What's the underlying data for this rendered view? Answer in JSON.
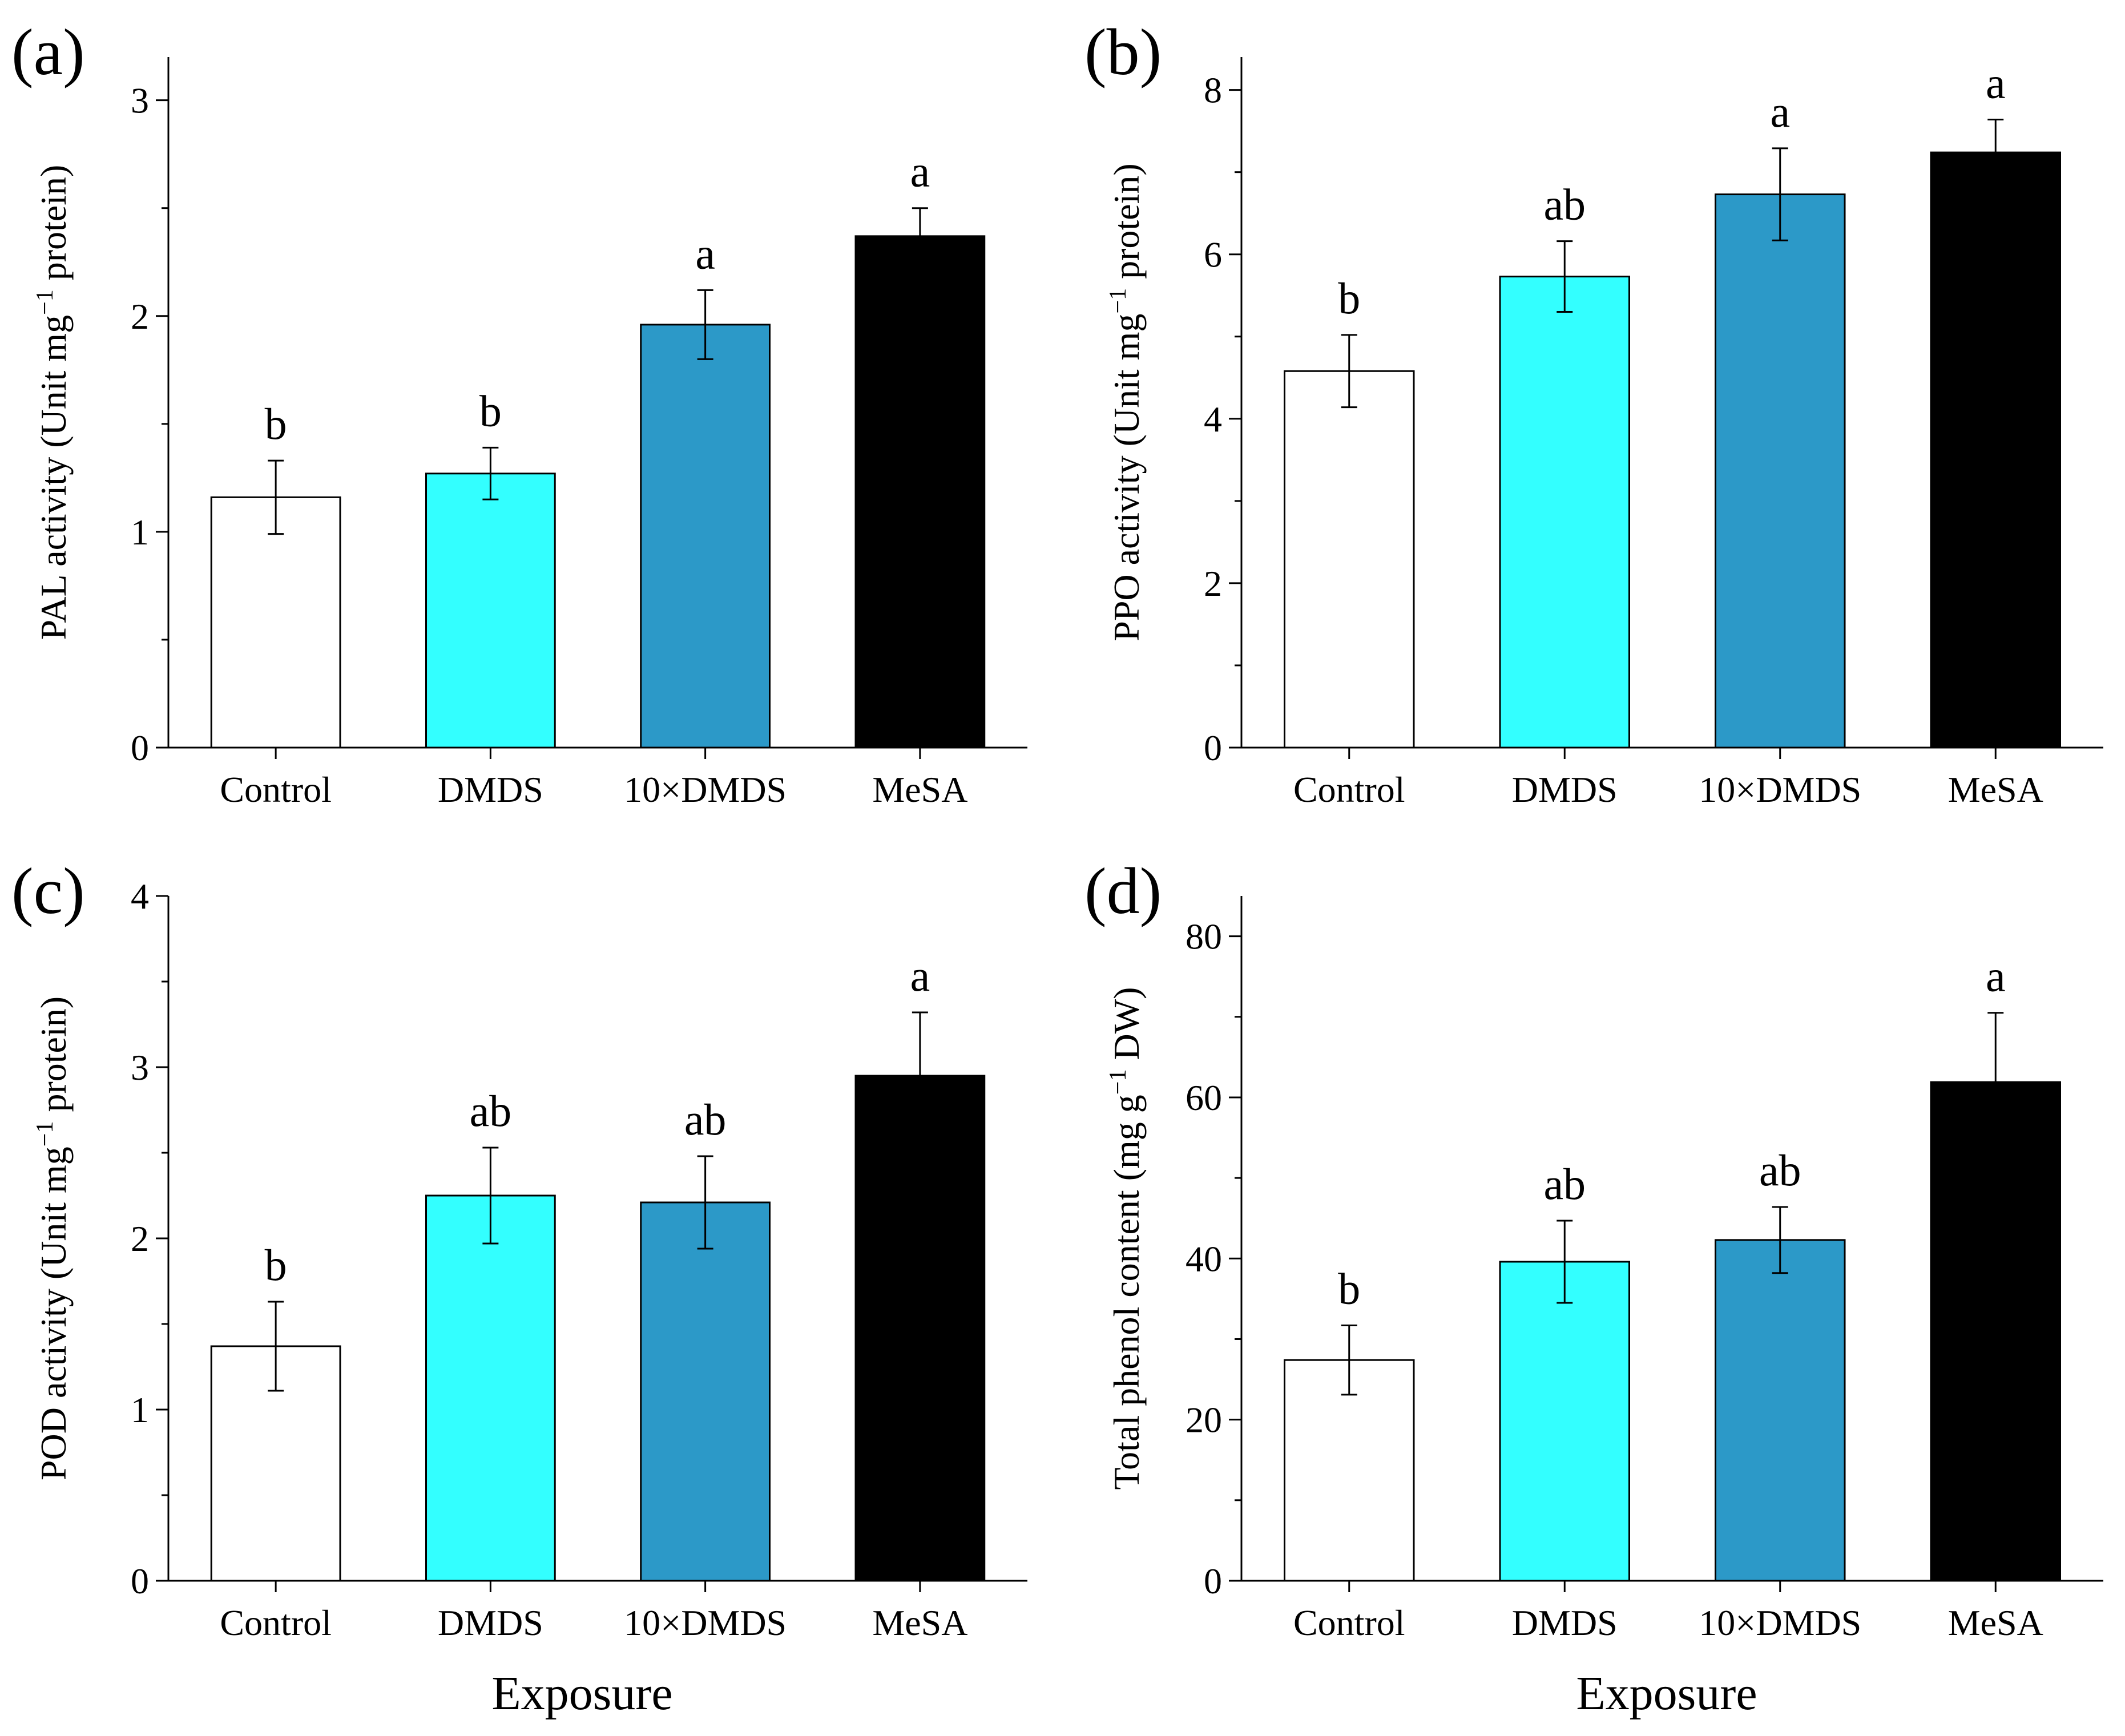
{
  "figure": {
    "x_title": "Exposure"
  },
  "chart_data": [
    {
      "type": "bar",
      "panel": "(a)",
      "categories": [
        "Control",
        "DMDS",
        "10×DMDS",
        "MeSA"
      ],
      "values": [
        1.16,
        1.27,
        1.96,
        2.37
      ],
      "errors": [
        0.17,
        0.12,
        0.16,
        0.13
      ],
      "significance": [
        "b",
        "b",
        "a",
        "a"
      ],
      "colors": [
        "#ffffff",
        "#33ffff",
        "#2c99c8",
        "#000000"
      ],
      "ylabel": "PAL activity (Unit mg",
      "ylabel_sup": "−1",
      "ylabel_tail": " protein)",
      "ylim": [
        0,
        3.2
      ],
      "yticks": [
        0,
        1,
        2,
        3
      ],
      "yticklabels": [
        "0",
        "1",
        "2",
        "3"
      ],
      "xlabel": ""
    },
    {
      "type": "bar",
      "panel": "(b)",
      "categories": [
        "Control",
        "DMDS",
        "10×DMDS",
        "MeSA"
      ],
      "values": [
        4.58,
        5.73,
        6.73,
        7.24
      ],
      "errors": [
        0.44,
        0.43,
        0.56,
        0.4
      ],
      "significance": [
        "b",
        "ab",
        "a",
        "a"
      ],
      "colors": [
        "#ffffff",
        "#33ffff",
        "#2c99c8",
        "#000000"
      ],
      "ylabel": "PPO activity (Unit mg",
      "ylabel_sup": "−1",
      "ylabel_tail": " protein)",
      "ylim": [
        0,
        8.4
      ],
      "yticks": [
        0,
        2,
        4,
        6,
        8
      ],
      "yticklabels": [
        "0",
        "2",
        "4",
        "6",
        "8"
      ],
      "xlabel": ""
    },
    {
      "type": "bar",
      "panel": "(c)",
      "categories": [
        "Control",
        "DMDS",
        "10×DMDS",
        "MeSA"
      ],
      "values": [
        1.37,
        2.25,
        2.21,
        2.95
      ],
      "errors": [
        0.26,
        0.28,
        0.27,
        0.37
      ],
      "significance": [
        "b",
        "ab",
        "ab",
        "a"
      ],
      "colors": [
        "#ffffff",
        "#33ffff",
        "#2c99c8",
        "#000000"
      ],
      "ylabel": "POD activity (Unit mg",
      "ylabel_sup": "−1",
      "ylabel_tail": " protein)",
      "ylim": [
        0,
        4
      ],
      "yticks": [
        0,
        1,
        2,
        3,
        4
      ],
      "yticklabels": [
        "0",
        "1",
        "2",
        "3",
        "4"
      ],
      "xlabel": "Exposure"
    },
    {
      "type": "bar",
      "panel": "(d)",
      "categories": [
        "Control",
        "DMDS",
        "10×DMDS",
        "MeSA"
      ],
      "values": [
        27.4,
        39.6,
        42.3,
        61.9
      ],
      "errors": [
        4.3,
        5.1,
        4.1,
        8.6
      ],
      "significance": [
        "b",
        "ab",
        "ab",
        "a"
      ],
      "colors": [
        "#ffffff",
        "#33ffff",
        "#2c99c8",
        "#000000"
      ],
      "ylabel": "Total phenol content (mg g",
      "ylabel_sup": "−1",
      "ylabel_tail": " DW)",
      "ylim": [
        0,
        85
      ],
      "yticks": [
        0,
        20,
        40,
        60,
        80
      ],
      "yticklabels": [
        "0",
        "20",
        "40",
        "60",
        "80"
      ],
      "xlabel": "Exposure"
    }
  ]
}
